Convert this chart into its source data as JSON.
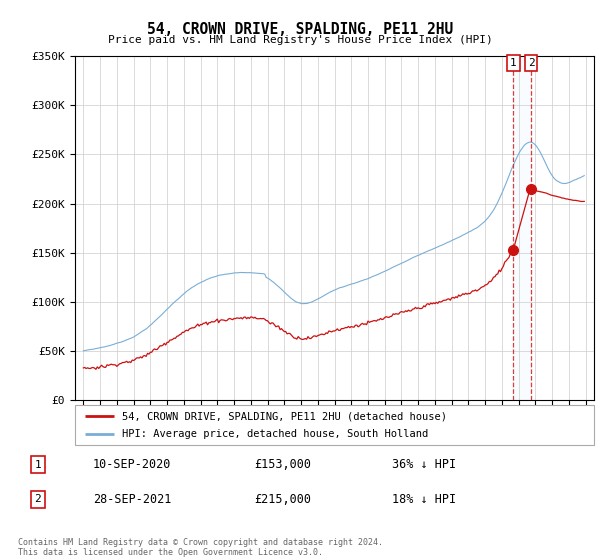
{
  "title": "54, CROWN DRIVE, SPALDING, PE11 2HU",
  "subtitle": "Price paid vs. HM Land Registry's House Price Index (HPI)",
  "hpi_label": "HPI: Average price, detached house, South Holland",
  "price_label": "54, CROWN DRIVE, SPALDING, PE11 2HU (detached house)",
  "hpi_color": "#7aaed6",
  "price_color": "#cc1111",
  "marker_color": "#cc1111",
  "vline_color": "#cc1111",
  "shade_color": "#ddeeff",
  "sale1_date_x": 2020.69,
  "sale1_price": 153000,
  "sale1_label": "10-SEP-2020",
  "sale1_pct": "36% ↓ HPI",
  "sale2_date_x": 2021.74,
  "sale2_price": 215000,
  "sale2_label": "28-SEP-2021",
  "sale2_pct": "18% ↓ HPI",
  "footnote": "Contains HM Land Registry data © Crown copyright and database right 2024.\nThis data is licensed under the Open Government Licence v3.0.",
  "ylim": [
    0,
    350000
  ],
  "xlim": [
    1994.5,
    2025.5
  ],
  "yticks": [
    0,
    50000,
    100000,
    150000,
    200000,
    250000,
    300000,
    350000
  ],
  "ytick_labels": [
    "£0",
    "£50K",
    "£100K",
    "£150K",
    "£200K",
    "£250K",
    "£300K",
    "£350K"
  ],
  "background_color": "#ffffff",
  "grid_color": "#cccccc"
}
